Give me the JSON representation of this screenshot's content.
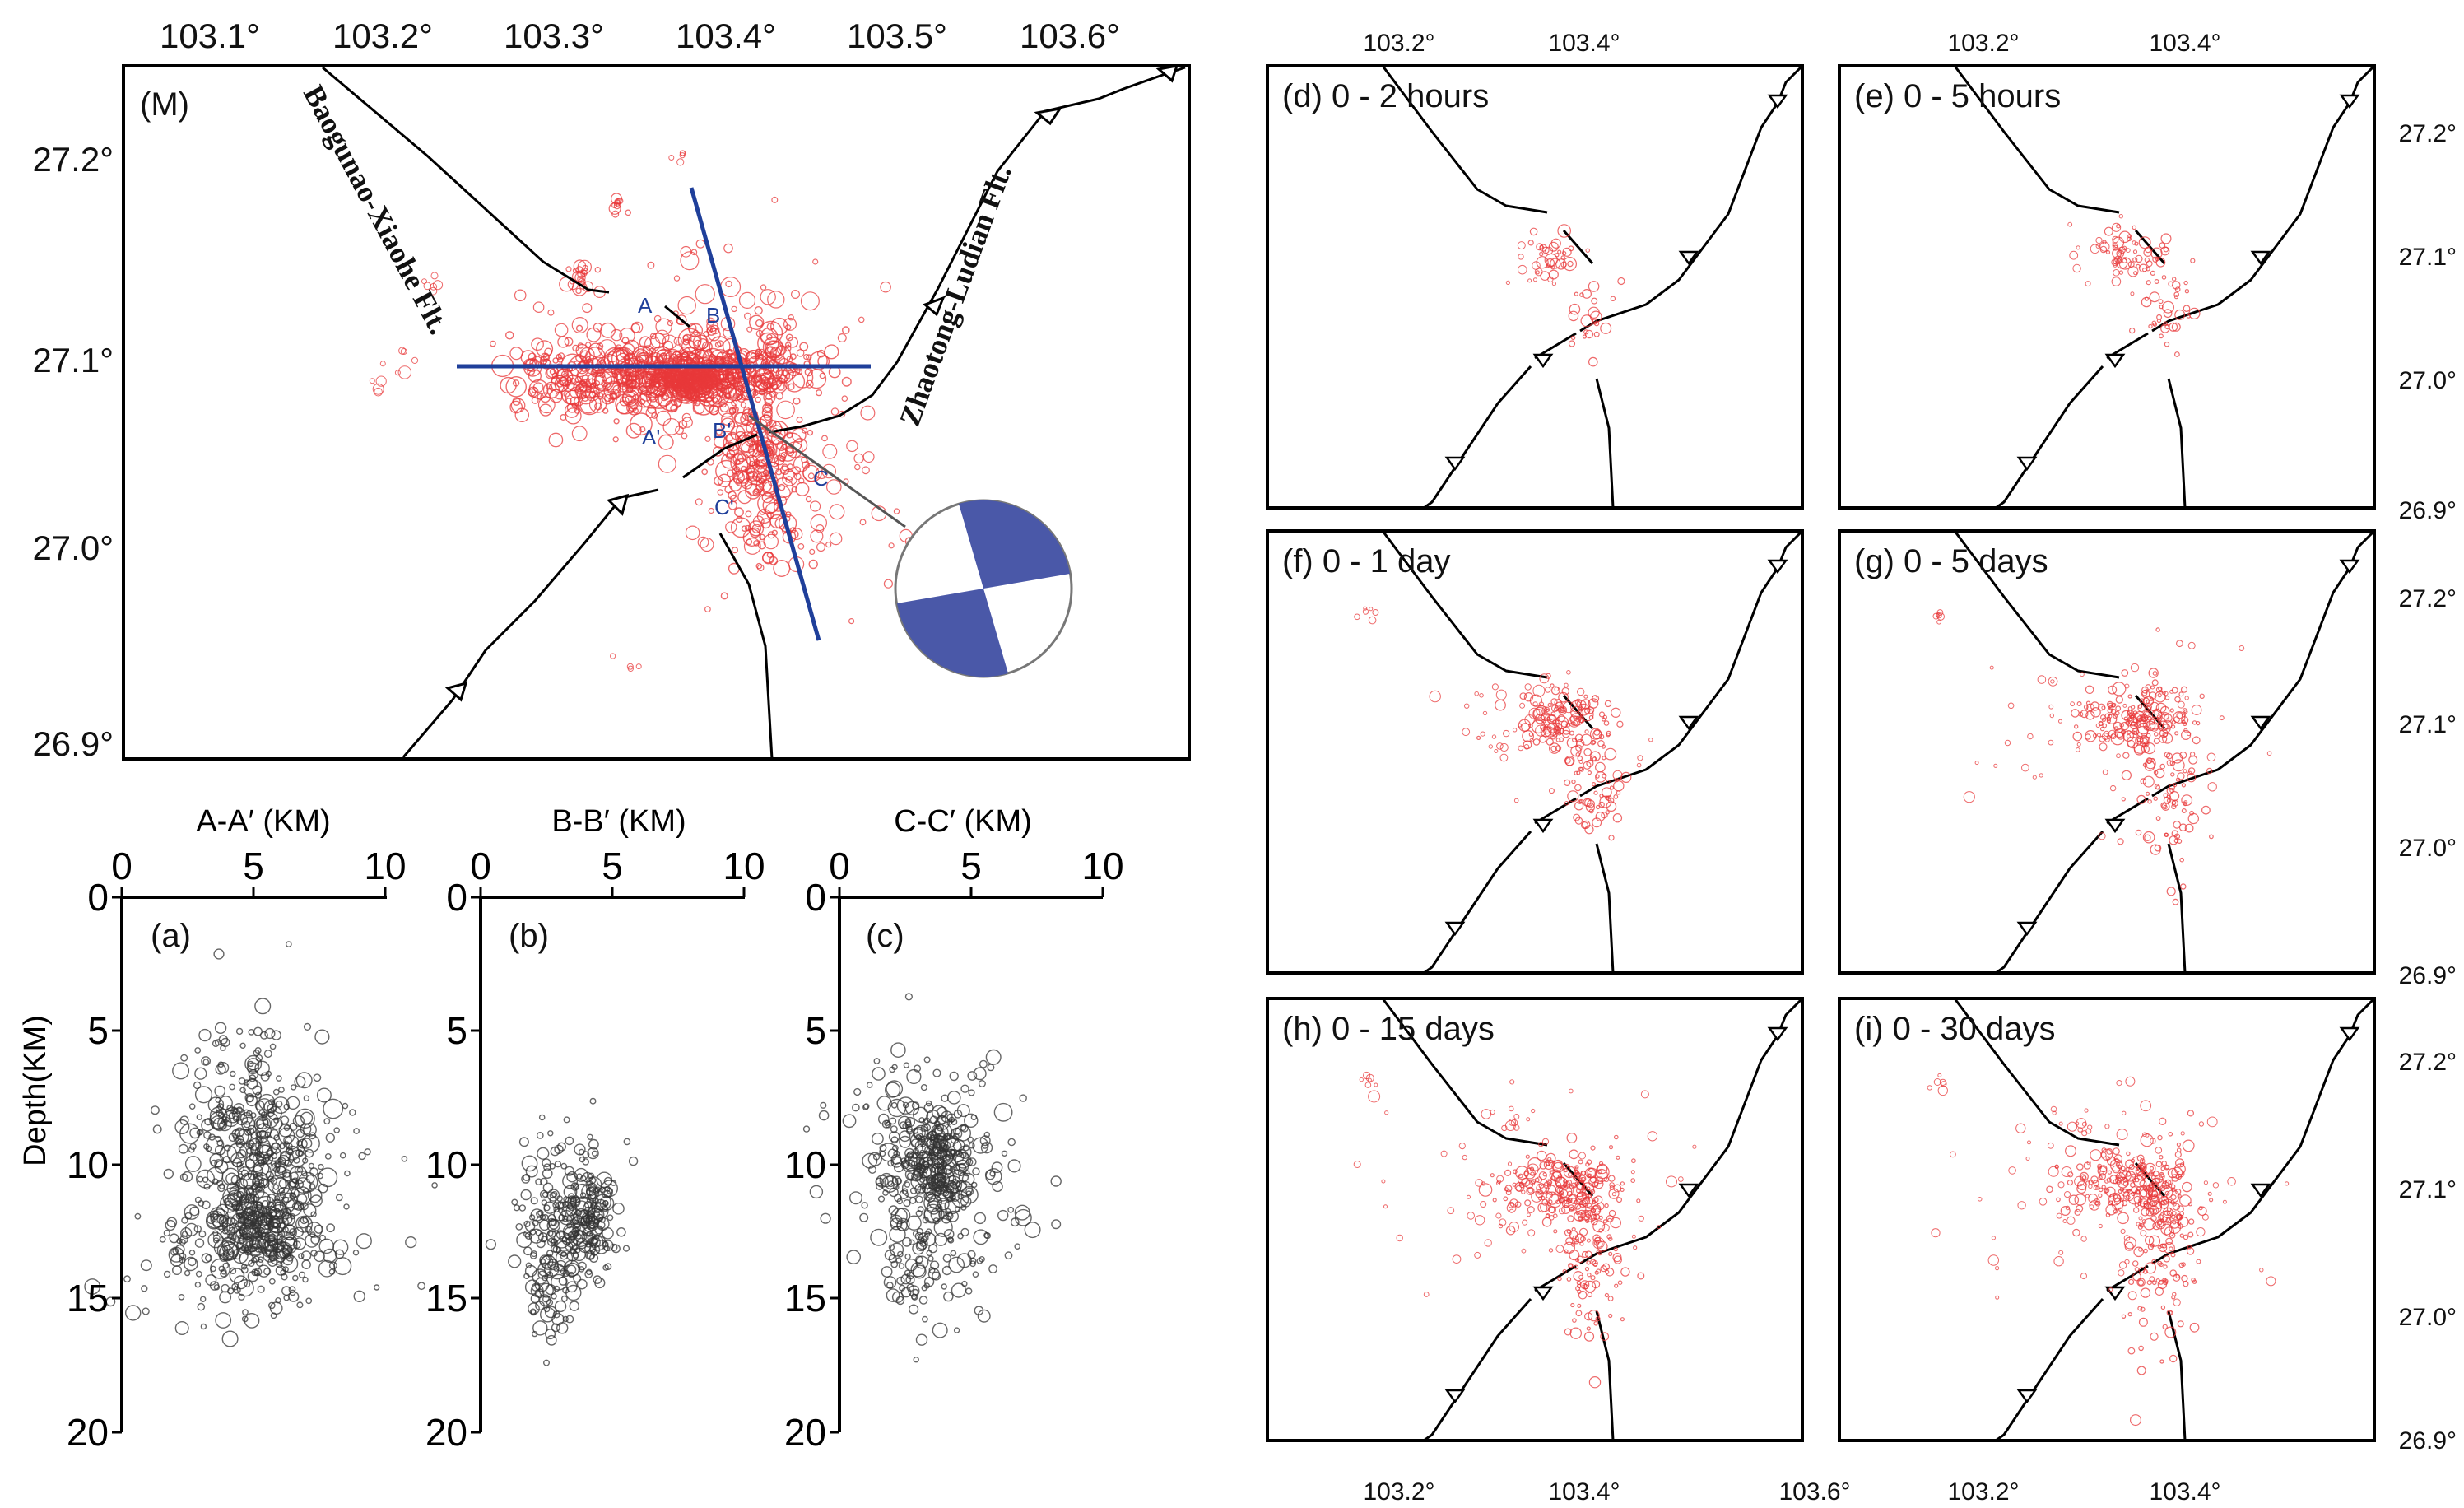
{
  "main_map": {
    "panel_label": "(M)",
    "lon_ticks": [
      "103.1°",
      "103.2°",
      "103.3°",
      "103.4°",
      "103.5°",
      "103.6°"
    ],
    "lat_ticks": [
      "27.2°",
      "27.1°",
      "27.0°",
      "26.9°"
    ],
    "fault_labels": {
      "baogunao": "Baogunao-Xiaohe Flt.",
      "zhaotong": "Zhaotong-Ludian Flt."
    },
    "profile_letters": {
      "a": "A",
      "a_prime": "A'",
      "b": "B",
      "b_prime": "B'",
      "c": "C",
      "c_prime": "C'"
    }
  },
  "profiles": {
    "a": {
      "title": "A-A′ (KM)",
      "label": "(a)",
      "y_title": "Depth(KM)"
    },
    "b": {
      "title": "B-B′ (KM)",
      "label": "(b)"
    },
    "c": {
      "title": "C-C′ (KM)",
      "label": "(c)"
    },
    "x_ticks": [
      "0",
      "5",
      "10"
    ],
    "y_ticks": [
      "0",
      "5",
      "10",
      "15",
      "20"
    ]
  },
  "small_maps": {
    "d": "(d) 0 - 2 hours",
    "e": "(e) 0 - 5 hours",
    "f": "(f) 0 - 1 day",
    "g": "(g) 0 - 5 days",
    "h": "(h) 0 - 15 days",
    "i": "(i) 0 - 30 days",
    "top_lon_ticks": [
      "103.2°",
      "103.4°"
    ],
    "bottom_lon_ticks": [
      "103.2°",
      "103.4°",
      "103.6°"
    ],
    "right_lat_ticks": [
      "27.2°",
      "27.1°",
      "27.0°",
      "26.9°"
    ]
  },
  "colors": {
    "events": "#e8383a",
    "profile_line": "#1f3f9a",
    "beachball": "#4a58a8",
    "depth_events": "#333333"
  }
}
